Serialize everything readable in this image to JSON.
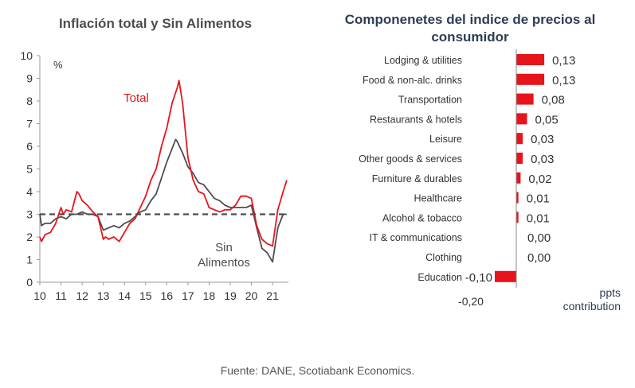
{
  "charts": [
    {
      "type": "line",
      "title": "Inflación total y Sin Alimentos",
      "unit_label": "%",
      "x_ticks": [
        "10",
        "11",
        "12",
        "13",
        "14",
        "15",
        "16",
        "17",
        "18",
        "19",
        "20",
        "21"
      ],
      "y_ticks": [
        "0",
        "1",
        "2",
        "3",
        "4",
        "5",
        "6",
        "7",
        "8",
        "9",
        "10"
      ],
      "ylim": [
        0,
        10
      ],
      "xlim": [
        2010.0,
        2021.75
      ],
      "reference_line": {
        "value": 3,
        "style": "dashed",
        "color": "#4d4d4d"
      },
      "series": [
        {
          "name": "Total",
          "color": "#e8141b",
          "label": "Total",
          "points": [
            [
              2010.0,
              2.0
            ],
            [
              2010.08,
              1.8
            ],
            [
              2010.25,
              2.1
            ],
            [
              2010.5,
              2.2
            ],
            [
              2010.75,
              2.6
            ],
            [
              2011.0,
              3.3
            ],
            [
              2011.1,
              3.0
            ],
            [
              2011.25,
              3.2
            ],
            [
              2011.5,
              3.1
            ],
            [
              2011.75,
              4.0
            ],
            [
              2011.85,
              3.9
            ],
            [
              2012.0,
              3.6
            ],
            [
              2012.25,
              3.4
            ],
            [
              2012.5,
              3.1
            ],
            [
              2012.75,
              2.9
            ],
            [
              2013.0,
              1.9
            ],
            [
              2013.1,
              2.0
            ],
            [
              2013.25,
              1.9
            ],
            [
              2013.5,
              2.0
            ],
            [
              2013.75,
              1.8
            ],
            [
              2014.0,
              2.2
            ],
            [
              2014.25,
              2.6
            ],
            [
              2014.5,
              2.8
            ],
            [
              2014.75,
              3.3
            ],
            [
              2015.0,
              3.8
            ],
            [
              2015.25,
              4.5
            ],
            [
              2015.5,
              5.0
            ],
            [
              2015.75,
              6.0
            ],
            [
              2016.0,
              6.8
            ],
            [
              2016.25,
              7.9
            ],
            [
              2016.5,
              8.6
            ],
            [
              2016.58,
              8.9
            ],
            [
              2016.75,
              7.9
            ],
            [
              2017.0,
              5.5
            ],
            [
              2017.25,
              4.5
            ],
            [
              2017.5,
              4.0
            ],
            [
              2017.75,
              3.9
            ],
            [
              2018.0,
              3.3
            ],
            [
              2018.25,
              3.2
            ],
            [
              2018.5,
              3.1
            ],
            [
              2018.75,
              3.2
            ],
            [
              2019.0,
              3.2
            ],
            [
              2019.25,
              3.4
            ],
            [
              2019.5,
              3.8
            ],
            [
              2019.75,
              3.8
            ],
            [
              2020.0,
              3.7
            ],
            [
              2020.25,
              2.5
            ],
            [
              2020.5,
              1.9
            ],
            [
              2020.75,
              1.7
            ],
            [
              2021.0,
              1.6
            ],
            [
              2021.25,
              3.2
            ],
            [
              2021.5,
              4.0
            ],
            [
              2021.67,
              4.5
            ]
          ]
        },
        {
          "name": "Sin Alimentos",
          "color": "#4d4d4d",
          "label": [
            "Sin",
            "Alimentos"
          ],
          "points": [
            [
              2010.0,
              3.0
            ],
            [
              2010.08,
              2.5
            ],
            [
              2010.25,
              2.6
            ],
            [
              2010.5,
              2.6
            ],
            [
              2010.75,
              2.8
            ],
            [
              2011.0,
              2.9
            ],
            [
              2011.25,
              2.8
            ],
            [
              2011.5,
              3.0
            ],
            [
              2011.75,
              3.0
            ],
            [
              2012.0,
              3.1
            ],
            [
              2012.25,
              3.0
            ],
            [
              2012.5,
              3.0
            ],
            [
              2012.75,
              2.9
            ],
            [
              2013.0,
              2.3
            ],
            [
              2013.25,
              2.4
            ],
            [
              2013.5,
              2.5
            ],
            [
              2013.75,
              2.4
            ],
            [
              2014.0,
              2.6
            ],
            [
              2014.25,
              2.7
            ],
            [
              2014.5,
              2.9
            ],
            [
              2014.75,
              3.1
            ],
            [
              2015.0,
              3.2
            ],
            [
              2015.25,
              3.6
            ],
            [
              2015.5,
              3.9
            ],
            [
              2015.75,
              4.6
            ],
            [
              2016.0,
              5.3
            ],
            [
              2016.25,
              5.9
            ],
            [
              2016.42,
              6.3
            ],
            [
              2016.5,
              6.2
            ],
            [
              2016.75,
              5.7
            ],
            [
              2017.0,
              5.1
            ],
            [
              2017.25,
              4.8
            ],
            [
              2017.5,
              4.4
            ],
            [
              2017.75,
              4.3
            ],
            [
              2018.0,
              4.0
            ],
            [
              2018.25,
              3.7
            ],
            [
              2018.5,
              3.6
            ],
            [
              2018.75,
              3.4
            ],
            [
              2019.0,
              3.3
            ],
            [
              2019.25,
              3.3
            ],
            [
              2019.5,
              3.3
            ],
            [
              2019.75,
              3.3
            ],
            [
              2020.0,
              3.4
            ],
            [
              2020.25,
              2.4
            ],
            [
              2020.5,
              1.5
            ],
            [
              2020.75,
              1.3
            ],
            [
              2021.0,
              0.9
            ],
            [
              2021.25,
              2.4
            ],
            [
              2021.5,
              3.0
            ],
            [
              2021.67,
              3.0
            ]
          ]
        }
      ]
    },
    {
      "type": "bar",
      "orientation": "horizontal",
      "title": "Componenetes del indice de precios al consumidor",
      "x_axis_label": [
        "ppts",
        "contribution"
      ],
      "x_tick": "-0,20",
      "xlim": [
        -0.2,
        0.3
      ],
      "bar_color": "#e8141b",
      "categories": [
        "Lodging & utilities",
        "Food & non-alc. drinks",
        "Transportation",
        "Restaurants & hotels",
        "Leisure",
        "Other goods & services",
        "Furniture & durables",
        "Healthcare",
        "Alcohol & tobacco",
        "IT & communications",
        "Clothing",
        "Education"
      ],
      "values": [
        0.13,
        0.13,
        0.08,
        0.05,
        0.03,
        0.03,
        0.02,
        0.01,
        0.01,
        0.0,
        0.0,
        -0.1
      ],
      "value_labels": [
        "0,13",
        "0,13",
        "0,08",
        "0,05",
        "0,03",
        "0,03",
        "0,02",
        "0,01",
        "0,01",
        "0,00",
        "0,00",
        "-0,10"
      ]
    }
  ],
  "source": "Fuente: DANE, Scotiabank Economics."
}
